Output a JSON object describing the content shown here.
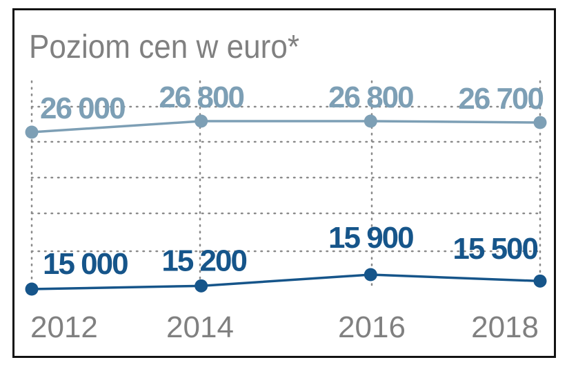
{
  "chart_data": {
    "type": "line",
    "title": "Poziom cen w euro*",
    "x": [
      "2012",
      "2014",
      "2016",
      "2018"
    ],
    "x_positions": [
      2012,
      2014,
      2016,
      2018
    ],
    "series": [
      {
        "values": [
          26000,
          26800,
          26800,
          26700
        ],
        "labels": [
          "26 000",
          "26 800",
          "26 800",
          "26 700"
        ],
        "color": "#7d9fb5"
      },
      {
        "values": [
          15000,
          15200,
          15900,
          15500
        ],
        "labels": [
          "15 000",
          "15 200",
          "15 900",
          "15 500"
        ],
        "color": "#16558a"
      }
    ],
    "grid": "dotted",
    "legend": "none"
  },
  "colors": {
    "axis_text": "#808080",
    "grid": "#8a8a8a",
    "frame": "#111111"
  }
}
